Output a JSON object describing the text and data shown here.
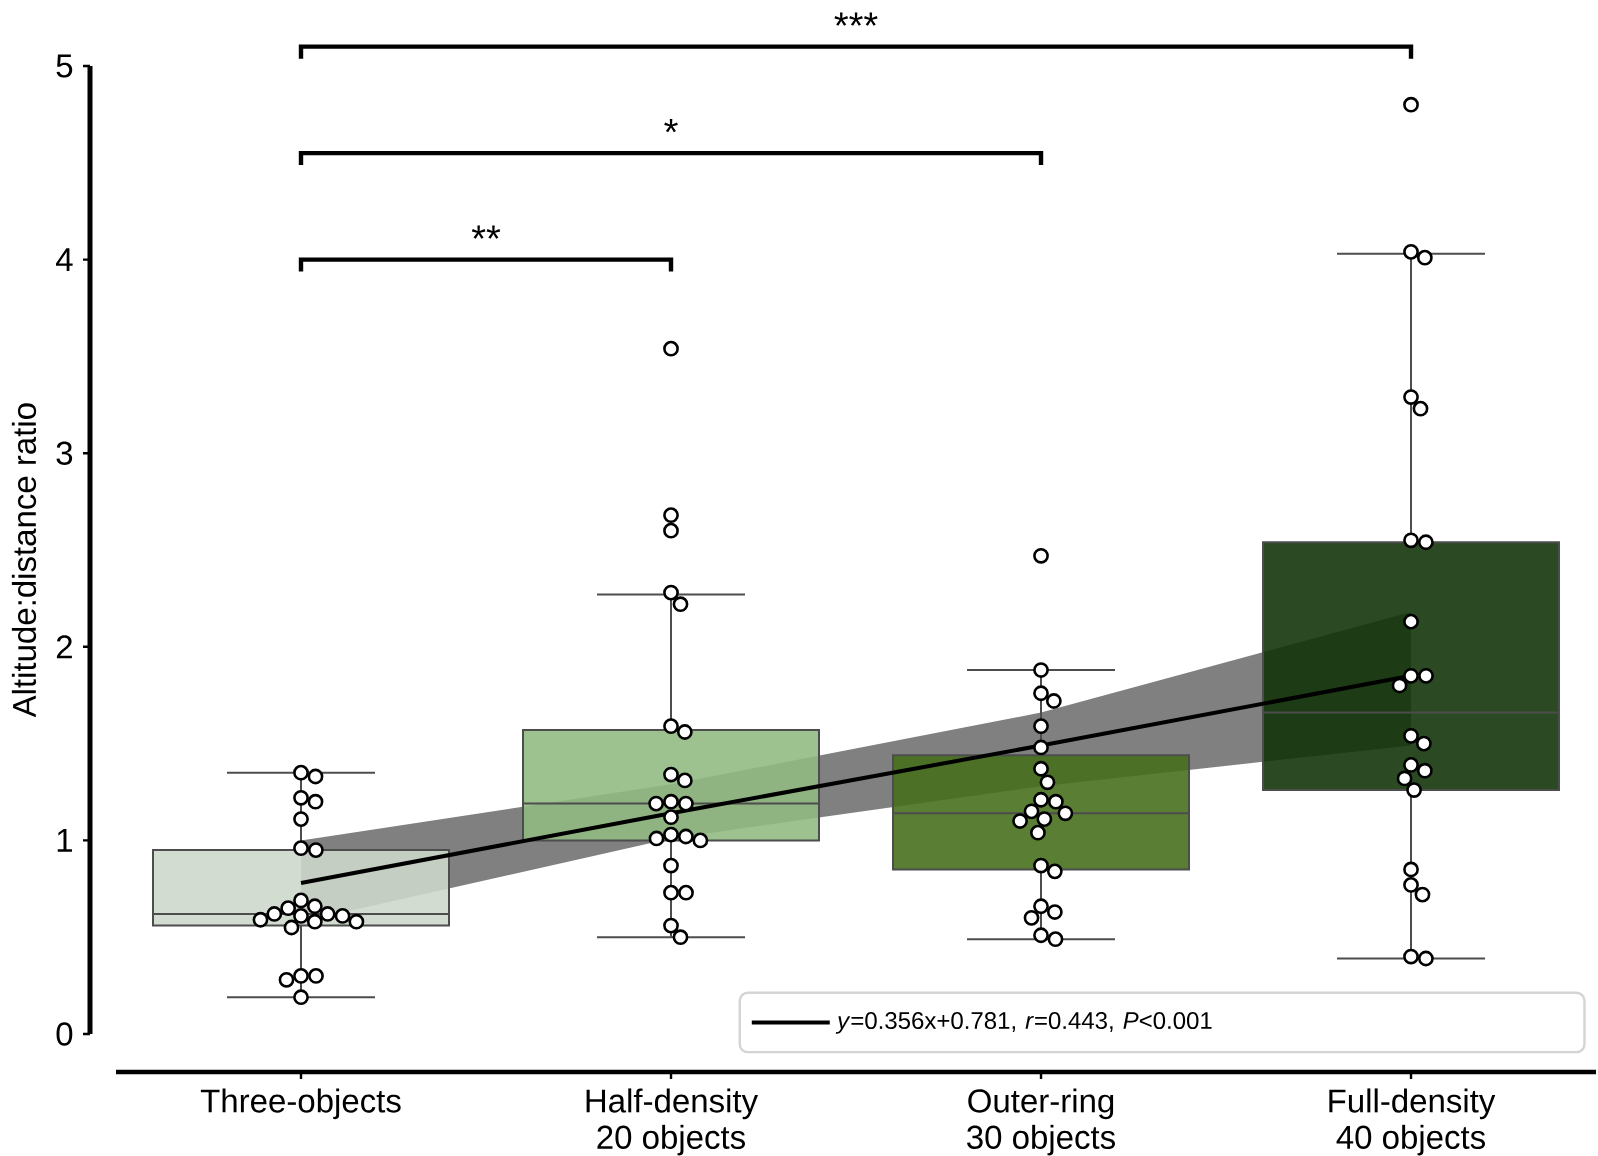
{
  "chart_data": {
    "type": "box",
    "ylabel": "Altitude:distance ratio",
    "categories": [
      "Three-objects",
      "Half-density\n20 objects",
      "Outer-ring\n30 objects",
      "Full-density\n40 objects"
    ],
    "boxes": [
      {
        "low": 0.19,
        "q1": 0.56,
        "median": 0.62,
        "q3": 0.95,
        "high": 1.35
      },
      {
        "low": 0.5,
        "q1": 1.0,
        "median": 1.19,
        "q3": 1.57,
        "high": 2.27
      },
      {
        "low": 0.49,
        "q1": 0.85,
        "median": 1.14,
        "q3": 1.44,
        "high": 1.88
      },
      {
        "low": 0.39,
        "q1": 1.26,
        "median": 1.66,
        "q3": 2.54,
        "high": 4.03
      }
    ],
    "colors": [
      "#d3dcd0",
      "#9dc18f",
      "#5a7e34",
      "#2b4a24"
    ],
    "series": [
      {
        "type": "line",
        "name": "*y*=0.356x+0.781, *r*=0.443, *P*<0.001",
        "color": "#000000",
        "values": [
          0.78,
          1.14,
          1.49,
          1.85
        ],
        "lower": [
          0.58,
          1.01,
          1.28,
          1.49
        ],
        "upper": [
          1.0,
          1.29,
          1.66,
          2.18
        ]
      },
      {
        "type": "scatter",
        "marker": "circle",
        "color": "#ffffff",
        "x": [
          "Three-objects",
          "Three-objects",
          "Three-objects",
          "Three-objects",
          "Three-objects",
          "Three-objects",
          "Three-objects",
          "Three-objects",
          "Three-objects",
          "Three-objects",
          "Three-objects",
          "Three-objects",
          "Three-objects",
          "Three-objects",
          "Three-objects",
          "Three-objects",
          "Three-objects",
          "Three-objects",
          "Three-objects",
          "Three-objects",
          "Three-objects",
          "Three-objects",
          "Half-density\n20 objects",
          "Half-density\n20 objects",
          "Half-density\n20 objects",
          "Half-density\n20 objects",
          "Half-density\n20 objects",
          "Half-density\n20 objects",
          "Half-density\n20 objects",
          "Half-density\n20 objects",
          "Half-density\n20 objects",
          "Half-density\n20 objects",
          "Half-density\n20 objects",
          "Half-density\n20 objects",
          "Half-density\n20 objects",
          "Half-density\n20 objects",
          "Half-density\n20 objects",
          "Half-density\n20 objects",
          "Half-density\n20 objects",
          "Half-density\n20 objects",
          "Half-density\n20 objects",
          "Half-density\n20 objects",
          "Half-density\n20 objects",
          "Half-density\n20 objects",
          "Outer-ring\n30 objects",
          "Outer-ring\n30 objects",
          "Outer-ring\n30 objects",
          "Outer-ring\n30 objects",
          "Outer-ring\n30 objects",
          "Outer-ring\n30 objects",
          "Outer-ring\n30 objects",
          "Outer-ring\n30 objects",
          "Outer-ring\n30 objects",
          "Outer-ring\n30 objects",
          "Outer-ring\n30 objects",
          "Outer-ring\n30 objects",
          "Outer-ring\n30 objects",
          "Outer-ring\n30 objects",
          "Outer-ring\n30 objects",
          "Outer-ring\n30 objects",
          "Outer-ring\n30 objects",
          "Outer-ring\n30 objects",
          "Outer-ring\n30 objects",
          "Outer-ring\n30 objects",
          "Outer-ring\n30 objects",
          "Outer-ring\n30 objects",
          "Full-density\n40 objects",
          "Full-density\n40 objects",
          "Full-density\n40 objects",
          "Full-density\n40 objects",
          "Full-density\n40 objects",
          "Full-density\n40 objects",
          "Full-density\n40 objects",
          "Full-density\n40 objects",
          "Full-density\n40 objects",
          "Full-density\n40 objects",
          "Full-density\n40 objects",
          "Full-density\n40 objects",
          "Full-density\n40 objects",
          "Full-density\n40 objects",
          "Full-density\n40 objects",
          "Full-density\n40 objects",
          "Full-density\n40 objects",
          "Full-density\n40 objects",
          "Full-density\n40 objects",
          "Full-density\n40 objects",
          "Full-density\n40 objects",
          "Full-density\n40 objects"
        ],
        "values": [
          1.35,
          1.33,
          1.22,
          1.2,
          1.11,
          0.96,
          0.95,
          0.69,
          0.66,
          0.65,
          0.62,
          0.62,
          0.61,
          0.61,
          0.59,
          0.58,
          0.58,
          0.55,
          0.3,
          0.3,
          0.28,
          0.19,
          3.54,
          2.68,
          2.6,
          2.28,
          2.22,
          1.59,
          1.56,
          1.34,
          1.31,
          1.2,
          1.19,
          1.19,
          1.12,
          1.03,
          1.02,
          1.01,
          1.0,
          0.87,
          0.73,
          0.73,
          0.56,
          0.5,
          2.47,
          1.88,
          1.76,
          1.72,
          1.59,
          1.48,
          1.37,
          1.3,
          1.21,
          1.2,
          1.15,
          1.14,
          1.11,
          1.1,
          1.04,
          0.87,
          0.84,
          0.66,
          0.63,
          0.6,
          0.51,
          0.49,
          4.8,
          4.04,
          4.01,
          3.29,
          3.23,
          2.55,
          2.54,
          2.13,
          1.85,
          1.85,
          1.8,
          1.54,
          1.5,
          1.39,
          1.36,
          1.32,
          1.26,
          0.85,
          0.77,
          0.72,
          0.4,
          0.39
        ]
      }
    ],
    "ylim": [
      0,
      5
    ],
    "yticks": [
      0,
      1,
      2,
      3,
      4,
      5
    ],
    "legend": "bottom right",
    "annotations": [
      "**",
      "*",
      "***"
    ]
  }
}
